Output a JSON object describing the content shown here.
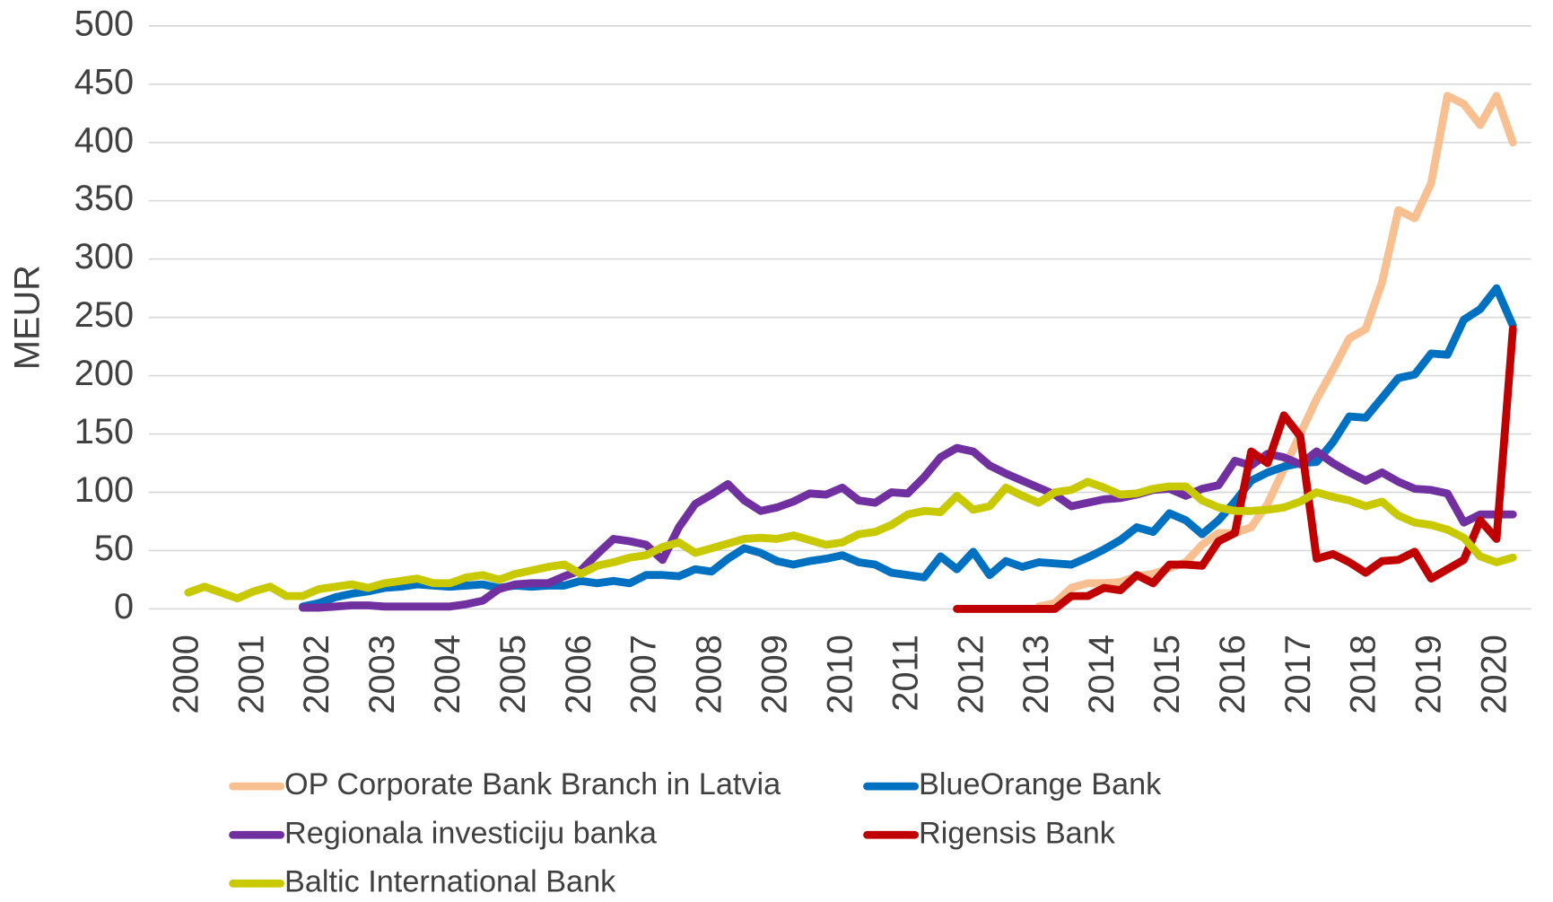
{
  "chart_data": {
    "type": "line",
    "y_label": "MEUR",
    "categories": [
      "2000",
      null,
      null,
      null,
      "2001",
      null,
      null,
      null,
      "2002",
      null,
      null,
      null,
      "2003",
      null,
      null,
      null,
      "2004",
      null,
      null,
      null,
      "2005",
      null,
      null,
      null,
      "2006",
      null,
      null,
      null,
      "2007",
      null,
      null,
      null,
      "2008",
      null,
      null,
      null,
      "2009",
      null,
      null,
      null,
      "2010",
      null,
      null,
      null,
      "2011",
      null,
      null,
      null,
      "2012",
      null,
      null,
      null,
      "2013",
      null,
      null,
      null,
      "2014",
      null,
      null,
      null,
      "2015",
      null,
      null,
      null,
      "2016",
      null,
      null,
      null,
      "2017",
      null,
      null,
      null,
      "2018",
      null,
      null,
      null,
      "2019",
      null,
      null,
      null,
      "2020",
      null
    ],
    "series": [
      {
        "name": "OP Corporate Bank Branch in Latvia",
        "color": "#f8c090",
        "values": [
          null,
          null,
          null,
          null,
          null,
          null,
          null,
          null,
          null,
          null,
          null,
          null,
          null,
          null,
          null,
          null,
          null,
          null,
          null,
          null,
          null,
          null,
          null,
          null,
          null,
          null,
          null,
          null,
          null,
          null,
          null,
          null,
          null,
          null,
          null,
          null,
          null,
          null,
          null,
          null,
          null,
          null,
          null,
          null,
          null,
          null,
          null,
          null,
          null,
          null,
          null,
          null,
          2,
          5,
          18,
          22,
          22,
          23,
          28,
          30,
          35,
          40,
          55,
          65,
          65,
          70,
          90,
          120,
          150,
          180,
          205,
          232,
          240,
          280,
          342,
          335,
          365,
          440,
          433,
          415,
          440,
          400
        ]
      },
      {
        "name": "BlueOrange Bank",
        "color": "#0070c0",
        "values": [
          null,
          null,
          null,
          null,
          null,
          null,
          null,
          2,
          5,
          10,
          13,
          15,
          18,
          19,
          21,
          20,
          19,
          20,
          21,
          18,
          20,
          19,
          20,
          20,
          24,
          22,
          24,
          22,
          29,
          29,
          28,
          34,
          32,
          43,
          52,
          48,
          41,
          38,
          41,
          43,
          46,
          40,
          38,
          31,
          29,
          27,
          45,
          34,
          49,
          29,
          41,
          36,
          40,
          39,
          38,
          44,
          51,
          59,
          70,
          66,
          82,
          76,
          64,
          76,
          92,
          110,
          117,
          122,
          125,
          126,
          143,
          165,
          164,
          181,
          198,
          201,
          219,
          218,
          248,
          257,
          275,
          243
        ]
      },
      {
        "name": "Regionala investiciju banka",
        "color": "#7030a0",
        "values": [
          null,
          null,
          null,
          null,
          null,
          null,
          null,
          1,
          1,
          2,
          3,
          3,
          2,
          2,
          2,
          2,
          2,
          4,
          7,
          17,
          21,
          22,
          22,
          28,
          33,
          47,
          60,
          58,
          55,
          42,
          70,
          90,
          98,
          107,
          93,
          84,
          87,
          92,
          99,
          98,
          104,
          93,
          91,
          100,
          99,
          113,
          130,
          138,
          135,
          123,
          116,
          110,
          104,
          98,
          88,
          91,
          94,
          95,
          98,
          102,
          103,
          97,
          103,
          106,
          127,
          123,
          133,
          130,
          124,
          135,
          125,
          117,
          110,
          117,
          109,
          103,
          102,
          99,
          74,
          81,
          81,
          81
        ]
      },
      {
        "name": "Rigensis Bank",
        "color": "#c00000",
        "values": [
          null,
          null,
          null,
          null,
          null,
          null,
          null,
          null,
          null,
          null,
          null,
          null,
          null,
          null,
          null,
          null,
          null,
          null,
          null,
          null,
          null,
          null,
          null,
          null,
          null,
          null,
          null,
          null,
          null,
          null,
          null,
          null,
          null,
          null,
          null,
          null,
          null,
          null,
          null,
          null,
          null,
          null,
          null,
          null,
          null,
          null,
          null,
          0,
          0,
          0,
          0,
          0,
          0,
          0,
          11,
          11,
          18,
          16,
          29,
          22,
          38,
          38,
          37,
          58,
          65,
          135,
          125,
          166,
          148,
          43,
          47,
          40,
          31,
          41,
          42,
          49,
          26,
          34,
          42,
          76,
          60,
          240
        ]
      },
      {
        "name": "Baltic International Bank",
        "color": "#c9c900",
        "values": [
          14,
          19,
          14,
          9,
          15,
          19,
          11,
          11,
          17,
          19,
          21,
          18,
          22,
          24,
          26,
          22,
          22,
          27,
          29,
          25,
          30,
          33,
          36,
          38,
          30,
          37,
          40,
          44,
          46,
          53,
          57,
          48,
          52,
          56,
          60,
          61,
          60,
          63,
          59,
          55,
          57,
          64,
          66,
          72,
          81,
          84,
          83,
          97,
          85,
          88,
          104,
          97,
          91,
          100,
          102,
          109,
          104,
          98,
          99,
          103,
          105,
          105,
          93,
          87,
          84,
          84,
          85,
          87,
          92,
          100,
          96,
          93,
          88,
          92,
          80,
          74,
          72,
          68,
          61,
          45,
          40,
          44
        ]
      }
    ],
    "ylim": [
      0,
      500
    ],
    "yticks": [
      0,
      50,
      100,
      150,
      200,
      250,
      300,
      350,
      400,
      450,
      500
    ],
    "grid": true,
    "legend": "bottom"
  }
}
